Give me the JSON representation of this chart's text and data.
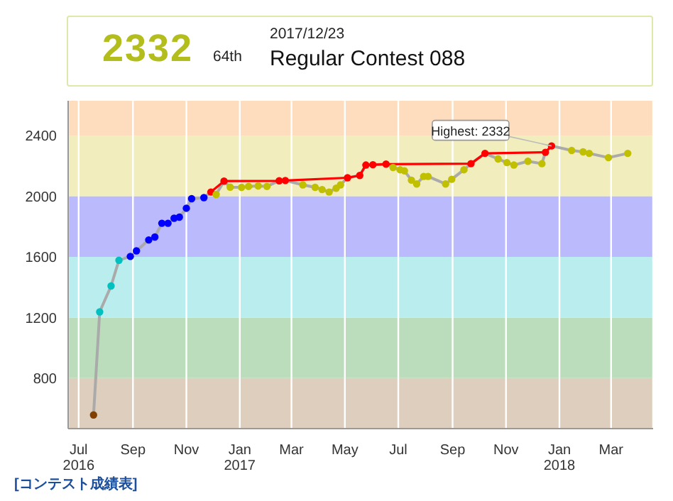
{
  "chart_data": {
    "type": "line",
    "title": "Regular Contest 088",
    "subtitle": "2017/12/23",
    "annotations": [
      "2332",
      "64th",
      {
        "text": "Highest: 2332",
        "x": "2017-12-23",
        "y": 2332
      },
      "[コンテスト成績表]"
    ],
    "xlim": [
      "2016-06-19",
      "2018-04-18"
    ],
    "xticks": [
      {
        "value": "2016-07-01",
        "label": "Jul\n2016"
      },
      {
        "value": "2016-09-01",
        "label": "Sep"
      },
      {
        "value": "2016-11-01",
        "label": "Nov"
      },
      {
        "value": "2017-01-01",
        "label": "Jan\n2017"
      },
      {
        "value": "2017-03-01",
        "label": "Mar"
      },
      {
        "value": "2017-05-01",
        "label": "May"
      },
      {
        "value": "2017-07-01",
        "label": "Jul"
      },
      {
        "value": "2017-09-01",
        "label": "Sep"
      },
      {
        "value": "2017-11-01",
        "label": "Nov"
      },
      {
        "value": "2018-01-01",
        "label": "Jan\n2018"
      },
      {
        "value": "2018-03-01",
        "label": "Mar"
      }
    ],
    "ylim": [
      467,
      2630
    ],
    "yticks": [
      800,
      1200,
      1600,
      2000,
      2400
    ],
    "grid": "x",
    "marker": "circle",
    "bands": [
      {
        "axis": "y",
        "from": 467,
        "to": 800,
        "color": "#dac9b6"
      },
      {
        "axis": "y",
        "from": 800,
        "to": 1200,
        "color": "#b4d9b4"
      },
      {
        "axis": "y",
        "from": 1200,
        "to": 1600,
        "color": "#b2ecec"
      },
      {
        "axis": "y",
        "from": 1600,
        "to": 2000,
        "color": "#b3b3fc"
      },
      {
        "axis": "y",
        "from": 2000,
        "to": 2400,
        "color": "#efebb5"
      },
      {
        "axis": "y",
        "from": 2400,
        "to": 2630,
        "color": "#fdd9b6"
      }
    ],
    "series": [
      {
        "color": "#aaaaaa",
        "x": [
          "2016-07-18",
          "2016-07-25",
          "2016-08-07",
          "2016-08-16",
          "2016-08-29",
          "2016-09-05",
          "2016-09-19",
          "2016-09-26",
          "2016-10-04",
          "2016-10-11",
          "2016-10-18",
          "2016-10-24",
          "2016-11-01",
          "2016-11-07",
          "2016-11-21",
          "2016-11-29",
          "2016-12-05",
          "2016-12-14",
          "2016-12-21",
          "2017-01-03",
          "2017-01-11",
          "2017-01-22",
          "2017-02-01",
          "2017-02-15",
          "2017-02-22",
          "2017-03-14",
          "2017-03-28",
          "2017-04-05",
          "2017-04-13",
          "2017-04-21",
          "2017-04-26",
          "2017-05-04",
          "2017-05-18",
          "2017-05-25",
          "2017-06-02",
          "2017-06-17",
          "2017-06-25",
          "2017-07-03",
          "2017-07-08",
          "2017-07-16",
          "2017-07-22",
          "2017-07-30",
          "2017-08-04",
          "2017-08-24",
          "2017-08-31",
          "2017-09-14",
          "2017-09-22",
          "2017-10-08",
          "2017-10-23",
          "2017-11-02",
          "2017-11-10",
          "2017-11-26",
          "2017-12-12",
          "2017-12-16",
          "2017-12-23",
          "2018-01-15",
          "2018-01-28",
          "2018-02-04",
          "2018-02-26",
          "2018-03-20"
        ],
        "values": [
          557,
          1237,
          1408,
          1578,
          1603,
          1640,
          1712,
          1731,
          1822,
          1822,
          1855,
          1862,
          1921,
          1984,
          1991,
          2028,
          2012,
          2100,
          2060,
          2059,
          2065,
          2068,
          2065,
          2102,
          2104,
          2075,
          2059,
          2044,
          2028,
          2053,
          2075,
          2122,
          2137,
          2206,
          2208,
          2212,
          2190,
          2175,
          2168,
          2106,
          2081,
          2131,
          2131,
          2081,
          2112,
          2175,
          2215,
          2283,
          2246,
          2222,
          2206,
          2231,
          2215,
          2290,
          2332,
          2302,
          2293,
          2283,
          2255,
          2283
        ],
        "colors": [
          "#804000",
          "#00c0c0",
          "#00c0c0",
          "#00c0c0",
          "#0000ff",
          "#0000ff",
          "#0000ff",
          "#0000ff",
          "#0000ff",
          "#0000ff",
          "#0000ff",
          "#0000ff",
          "#0000ff",
          "#0000ff",
          "#0000ff",
          "#ff0000",
          "#c0c000",
          "#ff0000",
          "#c0c000",
          "#c0c000",
          "#c0c000",
          "#c0c000",
          "#c0c000",
          "#ff0000",
          "#ff0000",
          "#c0c000",
          "#c0c000",
          "#c0c000",
          "#c0c000",
          "#c0c000",
          "#c0c000",
          "#ff0000",
          "#ff0000",
          "#ff0000",
          "#ff0000",
          "#ff0000",
          "#c0c000",
          "#c0c000",
          "#c0c000",
          "#c0c000",
          "#c0c000",
          "#c0c000",
          "#c0c000",
          "#c0c000",
          "#c0c000",
          "#c0c000",
          "#ff0000",
          "#ff0000",
          "#c0c000",
          "#c0c000",
          "#c0c000",
          "#c0c000",
          "#c0c000",
          "#ff0000",
          "#ff0000",
          "#c0c000",
          "#c0c000",
          "#c0c000",
          "#c0c000",
          "#c0c000"
        ]
      },
      {
        "color": "#ff0000",
        "marker": "none",
        "x": [
          "2016-11-29",
          "2016-12-14",
          "2017-02-15",
          "2017-02-22",
          "2017-05-04",
          "2017-05-18",
          "2017-05-25",
          "2017-06-02",
          "2017-06-17",
          "2017-09-22",
          "2017-10-08",
          "2017-12-16",
          "2017-12-23"
        ],
        "values": [
          2028,
          2100,
          2102,
          2104,
          2122,
          2137,
          2206,
          2208,
          2212,
          2215,
          2283,
          2290,
          2332
        ]
      }
    ]
  }
}
